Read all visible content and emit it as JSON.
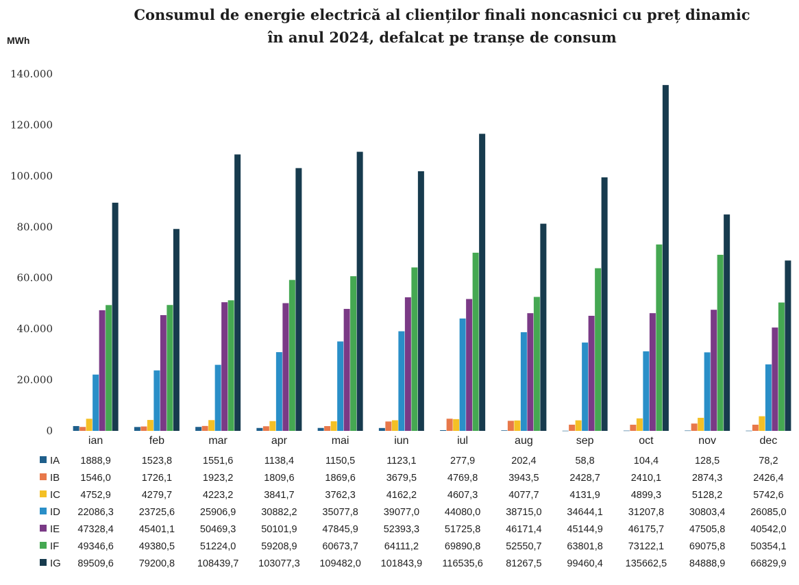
{
  "chart_data": {
    "type": "bar",
    "title_line1": "Consumul de energie electrică al clienților finali noncasnici cu preț dinamic",
    "title_line2": "în anul 2024, defalcat pe tranșe de consum",
    "unit_label": "MWh",
    "ylim": [
      0,
      140000
    ],
    "yticks": [
      "0",
      "20.000",
      "40.000",
      "60.000",
      "80.000",
      "100.000",
      "120.000",
      "140.000"
    ],
    "grid": false,
    "legend": "data-table",
    "categories": [
      "ian",
      "feb",
      "mar",
      "apr",
      "mai",
      "iun",
      "iul",
      "aug",
      "sep",
      "oct",
      "nov",
      "dec"
    ],
    "series": [
      {
        "name": "IA",
        "color": "#1f5f8b",
        "values": [
          1888.9,
          1523.8,
          1551.6,
          1138.4,
          1150.5,
          1123.1,
          277.9,
          202.4,
          58.8,
          104.4,
          128.5,
          78.2
        ],
        "labels": [
          "1888,9",
          "1523,8",
          "1551,6",
          "1138,4",
          "1150,5",
          "1123,1",
          "277,9",
          "202,4",
          "58,8",
          "104,4",
          "128,5",
          "78,2"
        ]
      },
      {
        "name": "IB",
        "color": "#e8784a",
        "values": [
          1546.0,
          1726.1,
          1923.2,
          1809.6,
          1869.6,
          3679.5,
          4769.8,
          3943.5,
          2428.7,
          2410.1,
          2874.3,
          2426.4
        ],
        "labels": [
          "1546,0",
          "1726,1",
          "1923,2",
          "1809,6",
          "1869,6",
          "3679,5",
          "4769,8",
          "3943,5",
          "2428,7",
          "2410,1",
          "2874,3",
          "2426,4"
        ]
      },
      {
        "name": "IC",
        "color": "#f4c025",
        "values": [
          4752.9,
          4279.7,
          4223.2,
          3841.7,
          3762.3,
          4162.2,
          4607.3,
          4077.7,
          4131.9,
          4899.3,
          5128.2,
          5742.6
        ],
        "labels": [
          "4752,9",
          "4279,7",
          "4223,2",
          "3841,7",
          "3762,3",
          "4162,2",
          "4607,3",
          "4077,7",
          "4131,9",
          "4899,3",
          "5128,2",
          "5742,6"
        ]
      },
      {
        "name": "ID",
        "color": "#2a8fc8",
        "values": [
          22086.3,
          23725.6,
          25906.9,
          30882.2,
          35077.8,
          39077.0,
          44080.0,
          38715.0,
          34644.1,
          31207.8,
          30803.4,
          26085.0
        ],
        "labels": [
          "22086,3",
          "23725,6",
          "25906,9",
          "30882,2",
          "35077,8",
          "39077,0",
          "44080,0",
          "38715,0",
          "34644,1",
          "31207,8",
          "30803,4",
          "26085,0"
        ]
      },
      {
        "name": "IE",
        "color": "#7a3a86",
        "values": [
          47328.4,
          45401.1,
          50469.3,
          50101.9,
          47845.9,
          52393.3,
          51725.8,
          46171.4,
          45144.9,
          46175.7,
          47505.8,
          40542.0
        ],
        "labels": [
          "47328,4",
          "45401,1",
          "50469,3",
          "50101,9",
          "47845,9",
          "52393,3",
          "51725,8",
          "46171,4",
          "45144,9",
          "46175,7",
          "47505,8",
          "40542,0"
        ]
      },
      {
        "name": "IF",
        "color": "#45a852",
        "values": [
          49346.6,
          49380.5,
          51224.0,
          59208.9,
          60673.7,
          64111.2,
          69890.8,
          52550.7,
          63801.8,
          73122.1,
          69075.8,
          50354.1
        ],
        "labels": [
          "49346,6",
          "49380,5",
          "51224,0",
          "59208,9",
          "60673,7",
          "64111,2",
          "69890,8",
          "52550,7",
          "63801,8",
          "73122,1",
          "69075,8",
          "50354,1"
        ]
      },
      {
        "name": "IG",
        "color": "#173b4e",
        "values": [
          89509.6,
          79200.8,
          108439.7,
          103077.3,
          109482.0,
          101843.9,
          116535.6,
          81267.5,
          99460.4,
          135662.5,
          84888.9,
          66829.9
        ],
        "labels": [
          "89509,6",
          "79200,8",
          "108439,7",
          "103077,3",
          "109482,0",
          "101843,9",
          "116535,6",
          "81267,5",
          "99460,4",
          "135662,5",
          "84888,9",
          "66829,9"
        ]
      }
    ]
  }
}
